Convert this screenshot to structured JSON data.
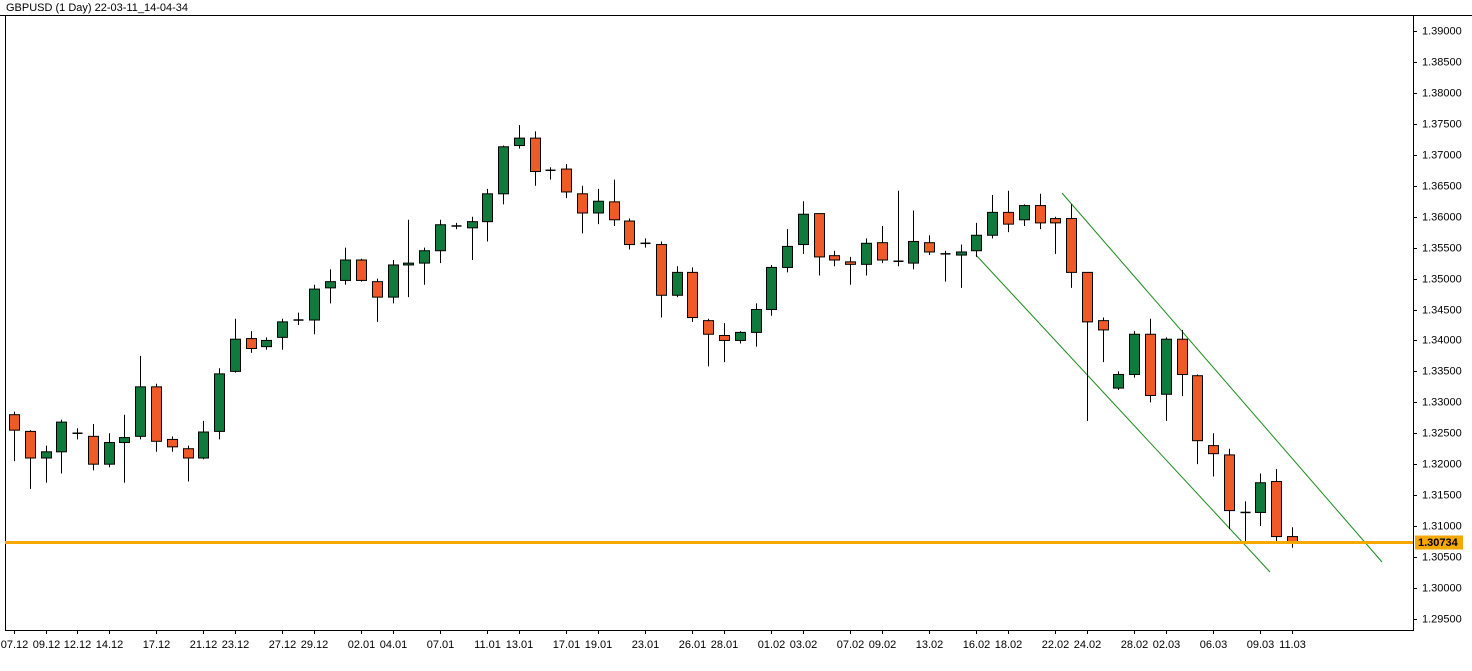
{
  "chart_data": {
    "type": "candlestick",
    "title": "GBPUSD (1 Day) 22-03-11_14-04-34",
    "categories": [
      "07.12",
      null,
      "09.12",
      null,
      "12.12",
      null,
      "14.12",
      null,
      null,
      "17.12",
      null,
      null,
      "21.12",
      null,
      "23.12",
      null,
      null,
      "27.12",
      null,
      "29.12",
      null,
      null,
      "02.01",
      null,
      "04.01",
      null,
      null,
      "07.01",
      null,
      null,
      "11.01",
      null,
      "13.01",
      null,
      null,
      "17.01",
      null,
      "19.01",
      null,
      null,
      "23.01",
      null,
      null,
      "26.01",
      null,
      "28.01",
      null,
      null,
      "01.02",
      null,
      "03.02",
      null,
      null,
      "07.02",
      null,
      "09.02",
      null,
      null,
      "13.02",
      null,
      null,
      "16.02",
      null,
      "18.02",
      null,
      null,
      "22.02",
      null,
      "24.02",
      null,
      null,
      "28.02",
      null,
      "02.03",
      null,
      null,
      "06.03",
      null,
      null,
      "09.03",
      null,
      "11.03"
    ],
    "open": [
      1.328,
      1.3253,
      1.321,
      1.322,
      1.3248,
      1.3245,
      1.32,
      1.3235,
      1.3245,
      1.3325,
      1.324,
      1.3225,
      1.321,
      1.3253,
      1.335,
      1.3403,
      1.339,
      1.3405,
      1.3433,
      1.3433,
      1.3485,
      1.3497,
      1.353,
      1.3495,
      1.347,
      1.3522,
      1.3525,
      1.3545,
      1.3585,
      1.3582,
      1.3592,
      1.3637,
      1.3715,
      1.3727,
      1.3675,
      1.3677,
      1.3637,
      1.3606,
      1.3624,
      1.3593,
      1.3557,
      1.3555,
      1.3473,
      1.351,
      1.3432,
      1.3408,
      1.34,
      1.3413,
      1.345,
      1.3518,
      1.3555,
      1.3605,
      1.3537,
      1.3527,
      1.3523,
      1.3558,
      1.3528,
      1.3525,
      1.3558,
      1.354,
      1.3538,
      1.3545,
      1.357,
      1.3607,
      1.3595,
      1.3618,
      1.3597,
      1.3597,
      1.351,
      1.3432,
      1.3323,
      1.3345,
      1.341,
      1.3313,
      1.3402,
      1.3343,
      1.323,
      1.3215,
      1.3122,
      1.3122,
      1.3172,
      1.3083
    ],
    "high": [
      1.3285,
      1.3255,
      1.323,
      1.3272,
      1.3258,
      1.3265,
      1.325,
      1.328,
      1.3375,
      1.333,
      1.3245,
      1.323,
      1.327,
      1.3355,
      1.3435,
      1.3415,
      1.3405,
      1.3435,
      1.3445,
      1.349,
      1.3515,
      1.355,
      1.3532,
      1.35,
      1.353,
      1.3595,
      1.355,
      1.3595,
      1.359,
      1.36,
      1.3645,
      1.3715,
      1.3748,
      1.3738,
      1.368,
      1.3685,
      1.365,
      1.3645,
      1.366,
      1.3597,
      1.3565,
      1.356,
      1.352,
      1.3518,
      1.3435,
      1.3428,
      1.3415,
      1.346,
      1.3522,
      1.358,
      1.3625,
      1.3605,
      1.3545,
      1.3535,
      1.3565,
      1.3585,
      1.3642,
      1.361,
      1.357,
      1.3545,
      1.3555,
      1.359,
      1.3635,
      1.3642,
      1.362,
      1.3637,
      1.36,
      1.362,
      1.351,
      1.3437,
      1.335,
      1.3415,
      1.3435,
      1.3405,
      1.3417,
      1.3345,
      1.325,
      1.3225,
      1.314,
      1.3185,
      1.3192,
      1.3098
    ],
    "low": [
      1.3205,
      1.316,
      1.317,
      1.3185,
      1.324,
      1.319,
      1.3195,
      1.317,
      1.324,
      1.322,
      1.322,
      1.3172,
      1.3208,
      1.324,
      1.3348,
      1.338,
      1.3385,
      1.3385,
      1.3425,
      1.341,
      1.346,
      1.349,
      1.3495,
      1.343,
      1.346,
      1.347,
      1.349,
      1.3525,
      1.358,
      1.353,
      1.356,
      1.362,
      1.371,
      1.365,
      1.366,
      1.363,
      1.3573,
      1.3588,
      1.3585,
      1.3547,
      1.355,
      1.3437,
      1.347,
      1.343,
      1.3358,
      1.3365,
      1.3395,
      1.339,
      1.344,
      1.351,
      1.354,
      1.3505,
      1.352,
      1.349,
      1.3505,
      1.3525,
      1.352,
      1.3515,
      1.3538,
      1.3495,
      1.3485,
      1.3535,
      1.3565,
      1.3575,
      1.3585,
      1.358,
      1.354,
      1.3485,
      1.327,
      1.3365,
      1.332,
      1.334,
      1.33,
      1.327,
      1.331,
      1.32,
      1.318,
      1.3095,
      1.3075,
      1.31,
      1.3075,
      1.3065
    ],
    "close": [
      1.3255,
      1.321,
      1.322,
      1.3268,
      1.325,
      1.32,
      1.3235,
      1.3243,
      1.3325,
      1.3237,
      1.3228,
      1.321,
      1.3252,
      1.3346,
      1.3402,
      1.3387,
      1.34,
      1.343,
      1.3433,
      1.3483,
      1.3495,
      1.353,
      1.3497,
      1.347,
      1.3522,
      1.3525,
      1.3545,
      1.3587,
      1.3583,
      1.3592,
      1.3637,
      1.3713,
      1.3727,
      1.3673,
      1.3673,
      1.364,
      1.3606,
      1.3625,
      1.3595,
      1.3555,
      1.3557,
      1.3473,
      1.351,
      1.3437,
      1.341,
      1.34,
      1.3413,
      1.345,
      1.3518,
      1.3552,
      1.3604,
      1.3535,
      1.353,
      1.3523,
      1.3557,
      1.353,
      1.3527,
      1.356,
      1.3543,
      1.354,
      1.3543,
      1.357,
      1.3607,
      1.3588,
      1.3618,
      1.359,
      1.359,
      1.351,
      1.343,
      1.3417,
      1.3345,
      1.341,
      1.3311,
      1.3402,
      1.3345,
      1.3238,
      1.3217,
      1.3125,
      1.312,
      1.317,
      1.3083,
      1.3073
    ],
    "up_color": "#107a3c",
    "down_color": "#f05a28",
    "last_price": 1.30734,
    "last_price_color": "#f5a800",
    "ylim": [
      1.2932,
      1.3926
    ],
    "yticks": [
      {
        "value": 1.295,
        "label": "1.29500"
      },
      {
        "value": 1.3,
        "label": "1.30000"
      },
      {
        "value": 1.305,
        "label": "1.30500"
      },
      {
        "value": 1.31,
        "label": "1.31000"
      },
      {
        "value": 1.315,
        "label": "1.31500"
      },
      {
        "value": 1.32,
        "label": "1.32000"
      },
      {
        "value": 1.325,
        "label": "1.32500"
      },
      {
        "value": 1.33,
        "label": "1.33000"
      },
      {
        "value": 1.335,
        "label": "1.33500"
      },
      {
        "value": 1.34,
        "label": "1.34000"
      },
      {
        "value": 1.345,
        "label": "1.34500"
      },
      {
        "value": 1.35,
        "label": "1.35000"
      },
      {
        "value": 1.355,
        "label": "1.35500"
      },
      {
        "value": 1.36,
        "label": "1.36000"
      },
      {
        "value": 1.365,
        "label": "1.36500"
      },
      {
        "value": 1.37,
        "label": "1.37000"
      },
      {
        "value": 1.375,
        "label": "1.37500"
      },
      {
        "value": 1.38,
        "label": "1.38000"
      },
      {
        "value": 1.385,
        "label": "1.38500"
      },
      {
        "value": 1.39,
        "label": "1.39000"
      }
    ],
    "grid": false
  }
}
